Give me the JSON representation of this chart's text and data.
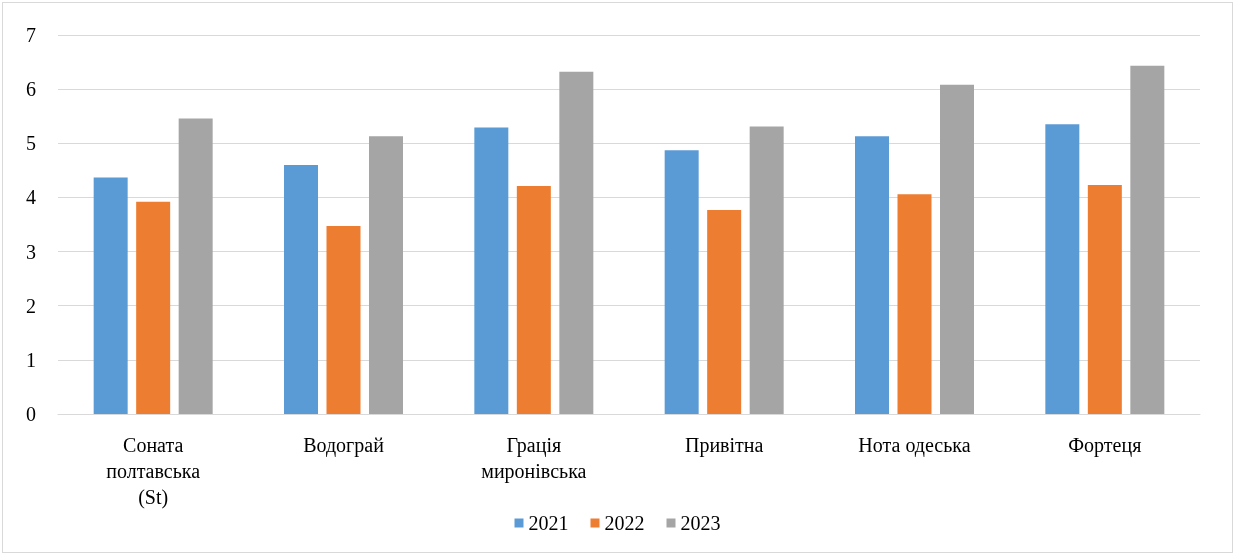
{
  "chart_data": {
    "type": "bar",
    "categories": [
      "Соната полтавська (St)",
      "Водограй",
      "Грація миронівська",
      "Привітна",
      "Нота одеська",
      "Фортеця"
    ],
    "series": [
      {
        "name": "2021",
        "color": "#5b9bd5",
        "values": [
          4.37,
          4.6,
          5.29,
          4.87,
          5.13,
          5.35
        ]
      },
      {
        "name": "2022",
        "color": "#ed7d31",
        "values": [
          3.92,
          3.47,
          4.21,
          3.77,
          4.06,
          4.23
        ]
      },
      {
        "name": "2023",
        "color": "#a5a5a5",
        "values": [
          5.46,
          5.13,
          6.32,
          5.31,
          6.08,
          6.43
        ]
      }
    ],
    "ylim": [
      0,
      7
    ],
    "yticks": [
      0,
      1,
      2,
      3,
      4,
      5,
      6,
      7
    ],
    "grid": "y",
    "legend": "bottom"
  }
}
